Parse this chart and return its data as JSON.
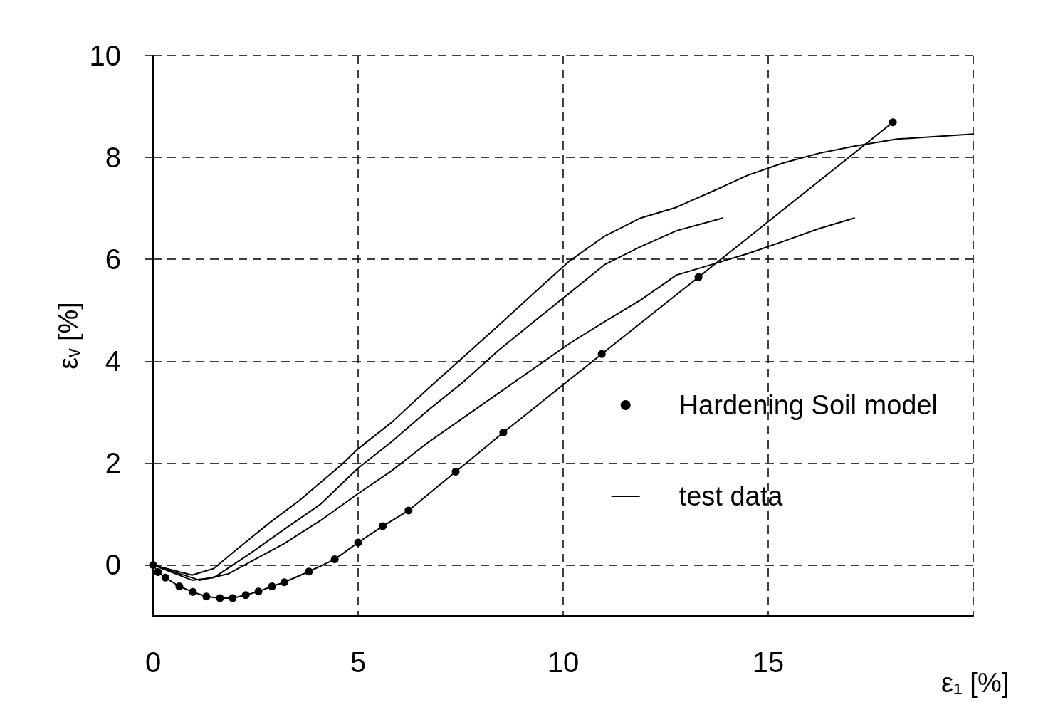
{
  "chart_data": {
    "type": "line",
    "xlabel": "ε₁ [%]",
    "ylabel": "εᵥ [%]",
    "xlim": [
      0,
      20
    ],
    "xticks": [
      0,
      5,
      10,
      15,
      {
        "value": 20,
        "label": null
      }
    ],
    "ylim": [
      -1,
      10
    ],
    "yticks": [
      0,
      2,
      4,
      6,
      8,
      10
    ],
    "grid": true,
    "legend": "right",
    "line_style": "solid",
    "series": [
      {
        "name": "Hardening Soil model",
        "color": "#000000",
        "marker": "circle",
        "x": [
          0,
          0.12,
          0.3,
          0.64,
          0.97,
          1.3,
          1.63,
          1.94,
          2.26,
          2.57,
          2.9,
          3.2,
          3.8,
          4.43,
          5.0,
          5.6,
          6.23,
          7.38,
          8.54,
          10.94,
          13.3,
          18.04
        ],
        "values": [
          0,
          -0.14,
          -0.25,
          -0.42,
          -0.53,
          -0.62,
          -0.65,
          -0.65,
          -0.59,
          -0.52,
          -0.42,
          -0.34,
          -0.13,
          0.11,
          0.44,
          0.76,
          1.07,
          1.83,
          2.6,
          4.14,
          5.65,
          8.69
        ]
      },
      {
        "name": "test data",
        "color": "#000000",
        "marker": "none",
        "x": [
          0,
          0.95,
          1.48,
          2.0,
          2.86,
          3.56,
          4.6,
          5.0,
          5.82,
          6.68,
          7.55,
          8.42,
          9.29,
          10.16,
          11.02,
          11.89,
          12.76,
          13.63,
          14.5,
          15.36,
          16.23,
          17.1,
          18.14,
          20
        ],
        "values": [
          0,
          -0.2,
          -0.07,
          0.28,
          0.84,
          1.26,
          1.97,
          2.28,
          2.8,
          3.44,
          4.07,
          4.7,
          5.34,
          5.97,
          6.46,
          6.81,
          7.02,
          7.33,
          7.65,
          7.89,
          8.08,
          8.22,
          8.36,
          8.46
        ]
      },
      {
        "color": "#000000",
        "marker": "none",
        "x": [
          0,
          0.95,
          1.48,
          2.34,
          3.2,
          4.08,
          5.0,
          5.82,
          6.68,
          7.55,
          8.42,
          9.29,
          10.16,
          11.02,
          11.89,
          12.76,
          13.89
        ],
        "values": [
          0,
          -0.3,
          -0.25,
          0.21,
          0.7,
          1.19,
          1.9,
          2.42,
          3.02,
          3.58,
          4.21,
          4.78,
          5.34,
          5.9,
          6.25,
          6.56,
          6.81
        ]
      },
      {
        "color": "#000000",
        "marker": "none",
        "x": [
          0,
          1.13,
          1.82,
          3.2,
          4.08,
          5.0,
          5.82,
          6.68,
          7.55,
          8.42,
          9.29,
          10.16,
          11.02,
          11.89,
          12.76,
          13.63,
          14.5,
          15.36,
          16.23,
          17.1
        ],
        "values": [
          0,
          -0.3,
          -0.18,
          0.42,
          0.87,
          1.4,
          1.85,
          2.39,
          2.88,
          3.37,
          3.86,
          4.35,
          4.78,
          5.2,
          5.69,
          5.9,
          6.11,
          6.35,
          6.6,
          6.81
        ]
      }
    ]
  }
}
